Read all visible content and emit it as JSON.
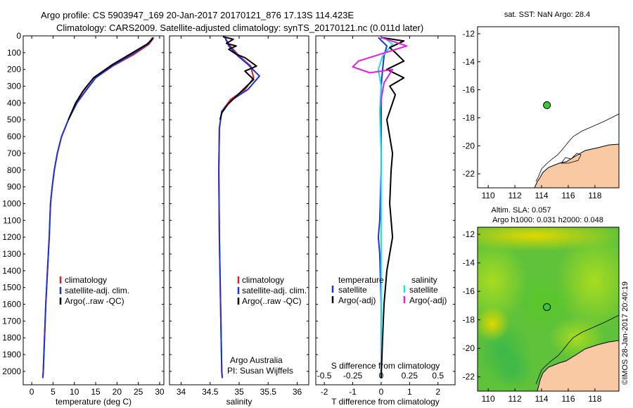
{
  "title": {
    "line1": "Argo profile: CS 5903947_169 20-Jan-2017 20170121_876 17.13S 114.423E",
    "line2": "Climatology: CARS2009. Satellite-adjusted climatology: synTS_20170121.nc (0.011d later)"
  },
  "colors": {
    "climatology": "#e02020",
    "satellite": "#1a33e0",
    "argo": "#000000",
    "salinity_sat": "#19e0e0",
    "salinity_argo": "#e020e0",
    "land": "#f9c9a3",
    "map_green": "#33cc33"
  },
  "annotations": {
    "agency": "Argo Australia",
    "pi": "PI: Susan Wijffels",
    "timestamp": "©IMOS 28-Jan-2017 20:40:19"
  },
  "map_top": {
    "title": "sat. SST: NaN Argo: 28.4"
  },
  "map_bottom": {
    "title1": "Altim. SLA: 0.057",
    "title2": "Argo h1000: 0.031 h2000: 0.048"
  },
  "chart_data": [
    {
      "id": "temperature",
      "type": "line",
      "xlabel": "temperature (deg C)",
      "ylabel": "",
      "xlim": [
        -2,
        31
      ],
      "ylim": [
        2080,
        0
      ],
      "xticks": [
        0,
        5,
        10,
        15,
        20,
        25,
        30
      ],
      "yticks": [
        0,
        100,
        200,
        300,
        400,
        500,
        600,
        700,
        800,
        900,
        1000,
        1100,
        1200,
        1300,
        1400,
        1500,
        1600,
        1700,
        1800,
        1900,
        2000
      ],
      "legend": [
        "climatology",
        "satellite-adj. clim.",
        "Argo(..raw -QC)"
      ],
      "series": [
        {
          "name": "climatology",
          "color_key": "climatology",
          "points": [
            [
              28.6,
              10
            ],
            [
              27.5,
              50
            ],
            [
              24,
              110
            ],
            [
              19,
              180
            ],
            [
              15,
              250
            ],
            [
              12.5,
              330
            ],
            [
              10.5,
              400
            ],
            [
              8.6,
              500
            ],
            [
              7,
              600
            ],
            [
              6,
              700
            ],
            [
              5.3,
              800
            ],
            [
              4.8,
              900
            ],
            [
              4.4,
              1000
            ],
            [
              4.1,
              1200
            ],
            [
              3.7,
              1400
            ],
            [
              3.3,
              1600
            ],
            [
              3,
              1800
            ],
            [
              2.7,
              2000
            ],
            [
              2.6,
              2040
            ]
          ]
        },
        {
          "name": "satellite-adj. clim.",
          "color_key": "satellite",
          "points": [
            [
              28.4,
              10
            ],
            [
              27.2,
              50
            ],
            [
              23.5,
              110
            ],
            [
              18.8,
              180
            ],
            [
              15,
              250
            ],
            [
              12.6,
              330
            ],
            [
              10.6,
              400
            ],
            [
              8.6,
              500
            ],
            [
              7,
              600
            ],
            [
              6,
              700
            ],
            [
              5.3,
              800
            ],
            [
              4.8,
              900
            ],
            [
              4.4,
              1000
            ],
            [
              4.1,
              1200
            ],
            [
              3.7,
              1400
            ],
            [
              3.3,
              1600
            ],
            [
              3,
              1800
            ],
            [
              2.7,
              2000
            ],
            [
              2.6,
              2040
            ]
          ]
        },
        {
          "name": "Argo(..raw -QC)",
          "color_key": "argo",
          "points": [
            [
              28.4,
              10
            ],
            [
              28.3,
              20
            ],
            [
              27,
              50
            ],
            [
              23,
              110
            ],
            [
              19,
              170
            ],
            [
              14.5,
              250
            ],
            [
              12,
              330
            ],
            [
              10.3,
              400
            ],
            [
              8.6,
              500
            ]
          ]
        }
      ]
    },
    {
      "id": "salinity",
      "type": "line",
      "xlabel": "salinity",
      "ylabel": "",
      "xlim": [
        33.8,
        36.2
      ],
      "ylim": [
        2080,
        0
      ],
      "xticks": [
        34,
        34.5,
        35,
        35.5,
        36
      ],
      "legend": [
        "climatology",
        "satellite-adj. clim.",
        "Argo(..raw -QC)"
      ],
      "series": [
        {
          "name": "climatology",
          "color_key": "climatology",
          "points": [
            [
              34.75,
              5
            ],
            [
              34.82,
              50
            ],
            [
              35,
              120
            ],
            [
              35.2,
              180
            ],
            [
              35.25,
              250
            ],
            [
              35.1,
              320
            ],
            [
              34.85,
              380
            ],
            [
              34.7,
              450
            ],
            [
              34.66,
              550
            ],
            [
              34.65,
              800
            ],
            [
              34.66,
              1200
            ],
            [
              34.68,
              1600
            ],
            [
              34.7,
              2000
            ],
            [
              34.71,
              2040
            ]
          ]
        },
        {
          "name": "satellite-adj. clim.",
          "color_key": "satellite",
          "points": [
            [
              34.75,
              5
            ],
            [
              34.82,
              60
            ],
            [
              34.98,
              120
            ],
            [
              35.15,
              170
            ],
            [
              35.35,
              240
            ],
            [
              35.15,
              320
            ],
            [
              34.88,
              380
            ],
            [
              34.7,
              450
            ],
            [
              34.66,
              550
            ],
            [
              34.65,
              800
            ],
            [
              34.66,
              1200
            ],
            [
              34.68,
              1600
            ],
            [
              34.7,
              2000
            ],
            [
              34.71,
              2040
            ]
          ]
        },
        {
          "name": "Argo(..raw -QC)",
          "color_key": "argo",
          "points": [
            [
              34.72,
              5
            ],
            [
              34.9,
              20
            ],
            [
              34.78,
              45
            ],
            [
              34.95,
              60
            ],
            [
              34.82,
              80
            ],
            [
              34.95,
              110
            ],
            [
              35.1,
              130
            ],
            [
              35.3,
              180
            ],
            [
              35.1,
              210
            ],
            [
              35.25,
              260
            ],
            [
              35.1,
              310
            ],
            [
              34.95,
              360
            ],
            [
              34.8,
              410
            ],
            [
              34.7,
              460
            ],
            [
              34.67,
              500
            ]
          ]
        }
      ]
    },
    {
      "id": "difference",
      "type": "line",
      "xlabel": "T difference from climatology",
      "xlabel_top": "S difference from climatology",
      "xlim": [
        -2.3,
        2.6
      ],
      "ylim": [
        2080,
        0
      ],
      "xticks": [
        -2,
        -1,
        0,
        1,
        2
      ],
      "xticks_s": [
        -0.5,
        -0.25,
        0,
        0.25,
        0.5
      ],
      "legend": {
        "temperature": "temperature",
        "salinity": "salinity",
        "t_sat": "satellite",
        "t_argo": "Argo(-adj)",
        "s_sat": "satellite",
        "s_argo": "Argo(-adj)"
      },
      "series": [
        {
          "name": "T satellite",
          "color_key": "satellite",
          "points": [
            [
              -0.1,
              10
            ],
            [
              0.2,
              60
            ],
            [
              0.1,
              120
            ],
            [
              0.05,
              200
            ],
            [
              0,
              300
            ],
            [
              0,
              500
            ],
            [
              0,
              800
            ],
            [
              -0.05,
              1100
            ],
            [
              -0.1,
              1200
            ],
            [
              -0.05,
              1300
            ],
            [
              0,
              1600
            ],
            [
              0,
              2040
            ]
          ]
        },
        {
          "name": "S satellite",
          "color_key": "salinity_sat",
          "points": [
            [
              0.1,
              10
            ],
            [
              0.4,
              50
            ],
            [
              0.05,
              120
            ],
            [
              -0.1,
              200
            ],
            [
              0,
              300
            ],
            [
              -0.05,
              450
            ],
            [
              0,
              700
            ],
            [
              0,
              1000
            ],
            [
              0,
              1400
            ],
            [
              0,
              2040
            ]
          ]
        },
        {
          "name": "T Argo(-adj)",
          "color_key": "argo",
          "points": [
            [
              0,
              10
            ],
            [
              0.8,
              30
            ],
            [
              0.3,
              70
            ],
            [
              0.5,
              100
            ],
            [
              0.8,
              150
            ],
            [
              0.2,
              200
            ],
            [
              0.8,
              250
            ],
            [
              0.3,
              300
            ],
            [
              0.5,
              350
            ],
            [
              0.4,
              400
            ],
            [
              0.2,
              500
            ],
            [
              0.3,
              600
            ],
            [
              0.4,
              700
            ],
            [
              0.35,
              800
            ],
            [
              0.3,
              1000
            ],
            [
              0.4,
              1200
            ],
            [
              0.2,
              1400
            ],
            [
              0.1,
              1600
            ],
            [
              0.05,
              1800
            ],
            [
              0,
              2040
            ]
          ]
        },
        {
          "name": "S Argo(-adj)",
          "color_key": "salinity_argo",
          "points": [
            [
              0,
              10
            ],
            [
              0.9,
              60
            ],
            [
              -0.8,
              150
            ],
            [
              -1.0,
              185
            ],
            [
              -0.4,
              220
            ],
            [
              0.4,
              200
            ],
            [
              0.1,
              280
            ],
            [
              0,
              380
            ],
            [
              0,
              420
            ]
          ]
        }
      ]
    },
    {
      "id": "map-sst",
      "type": "scatter",
      "xlim": [
        109.2,
        119.8
      ],
      "ylim": [
        -23,
        -11.5
      ],
      "xticks": [
        110,
        112,
        114,
        116,
        118
      ],
      "yticks": [
        -12,
        -14,
        -16,
        -18,
        -20,
        -22
      ],
      "points": [
        [
          114.4,
          -17.1
        ]
      ]
    },
    {
      "id": "map-sla",
      "type": "heatmap",
      "xlim": [
        109.2,
        119.8
      ],
      "ylim": [
        -23,
        -11.5
      ],
      "xticks": [
        110,
        112,
        114,
        116,
        118
      ],
      "yticks": [
        -12,
        -14,
        -16,
        -18,
        -20,
        -22
      ],
      "points": [
        [
          114.4,
          -17.1
        ]
      ]
    }
  ]
}
